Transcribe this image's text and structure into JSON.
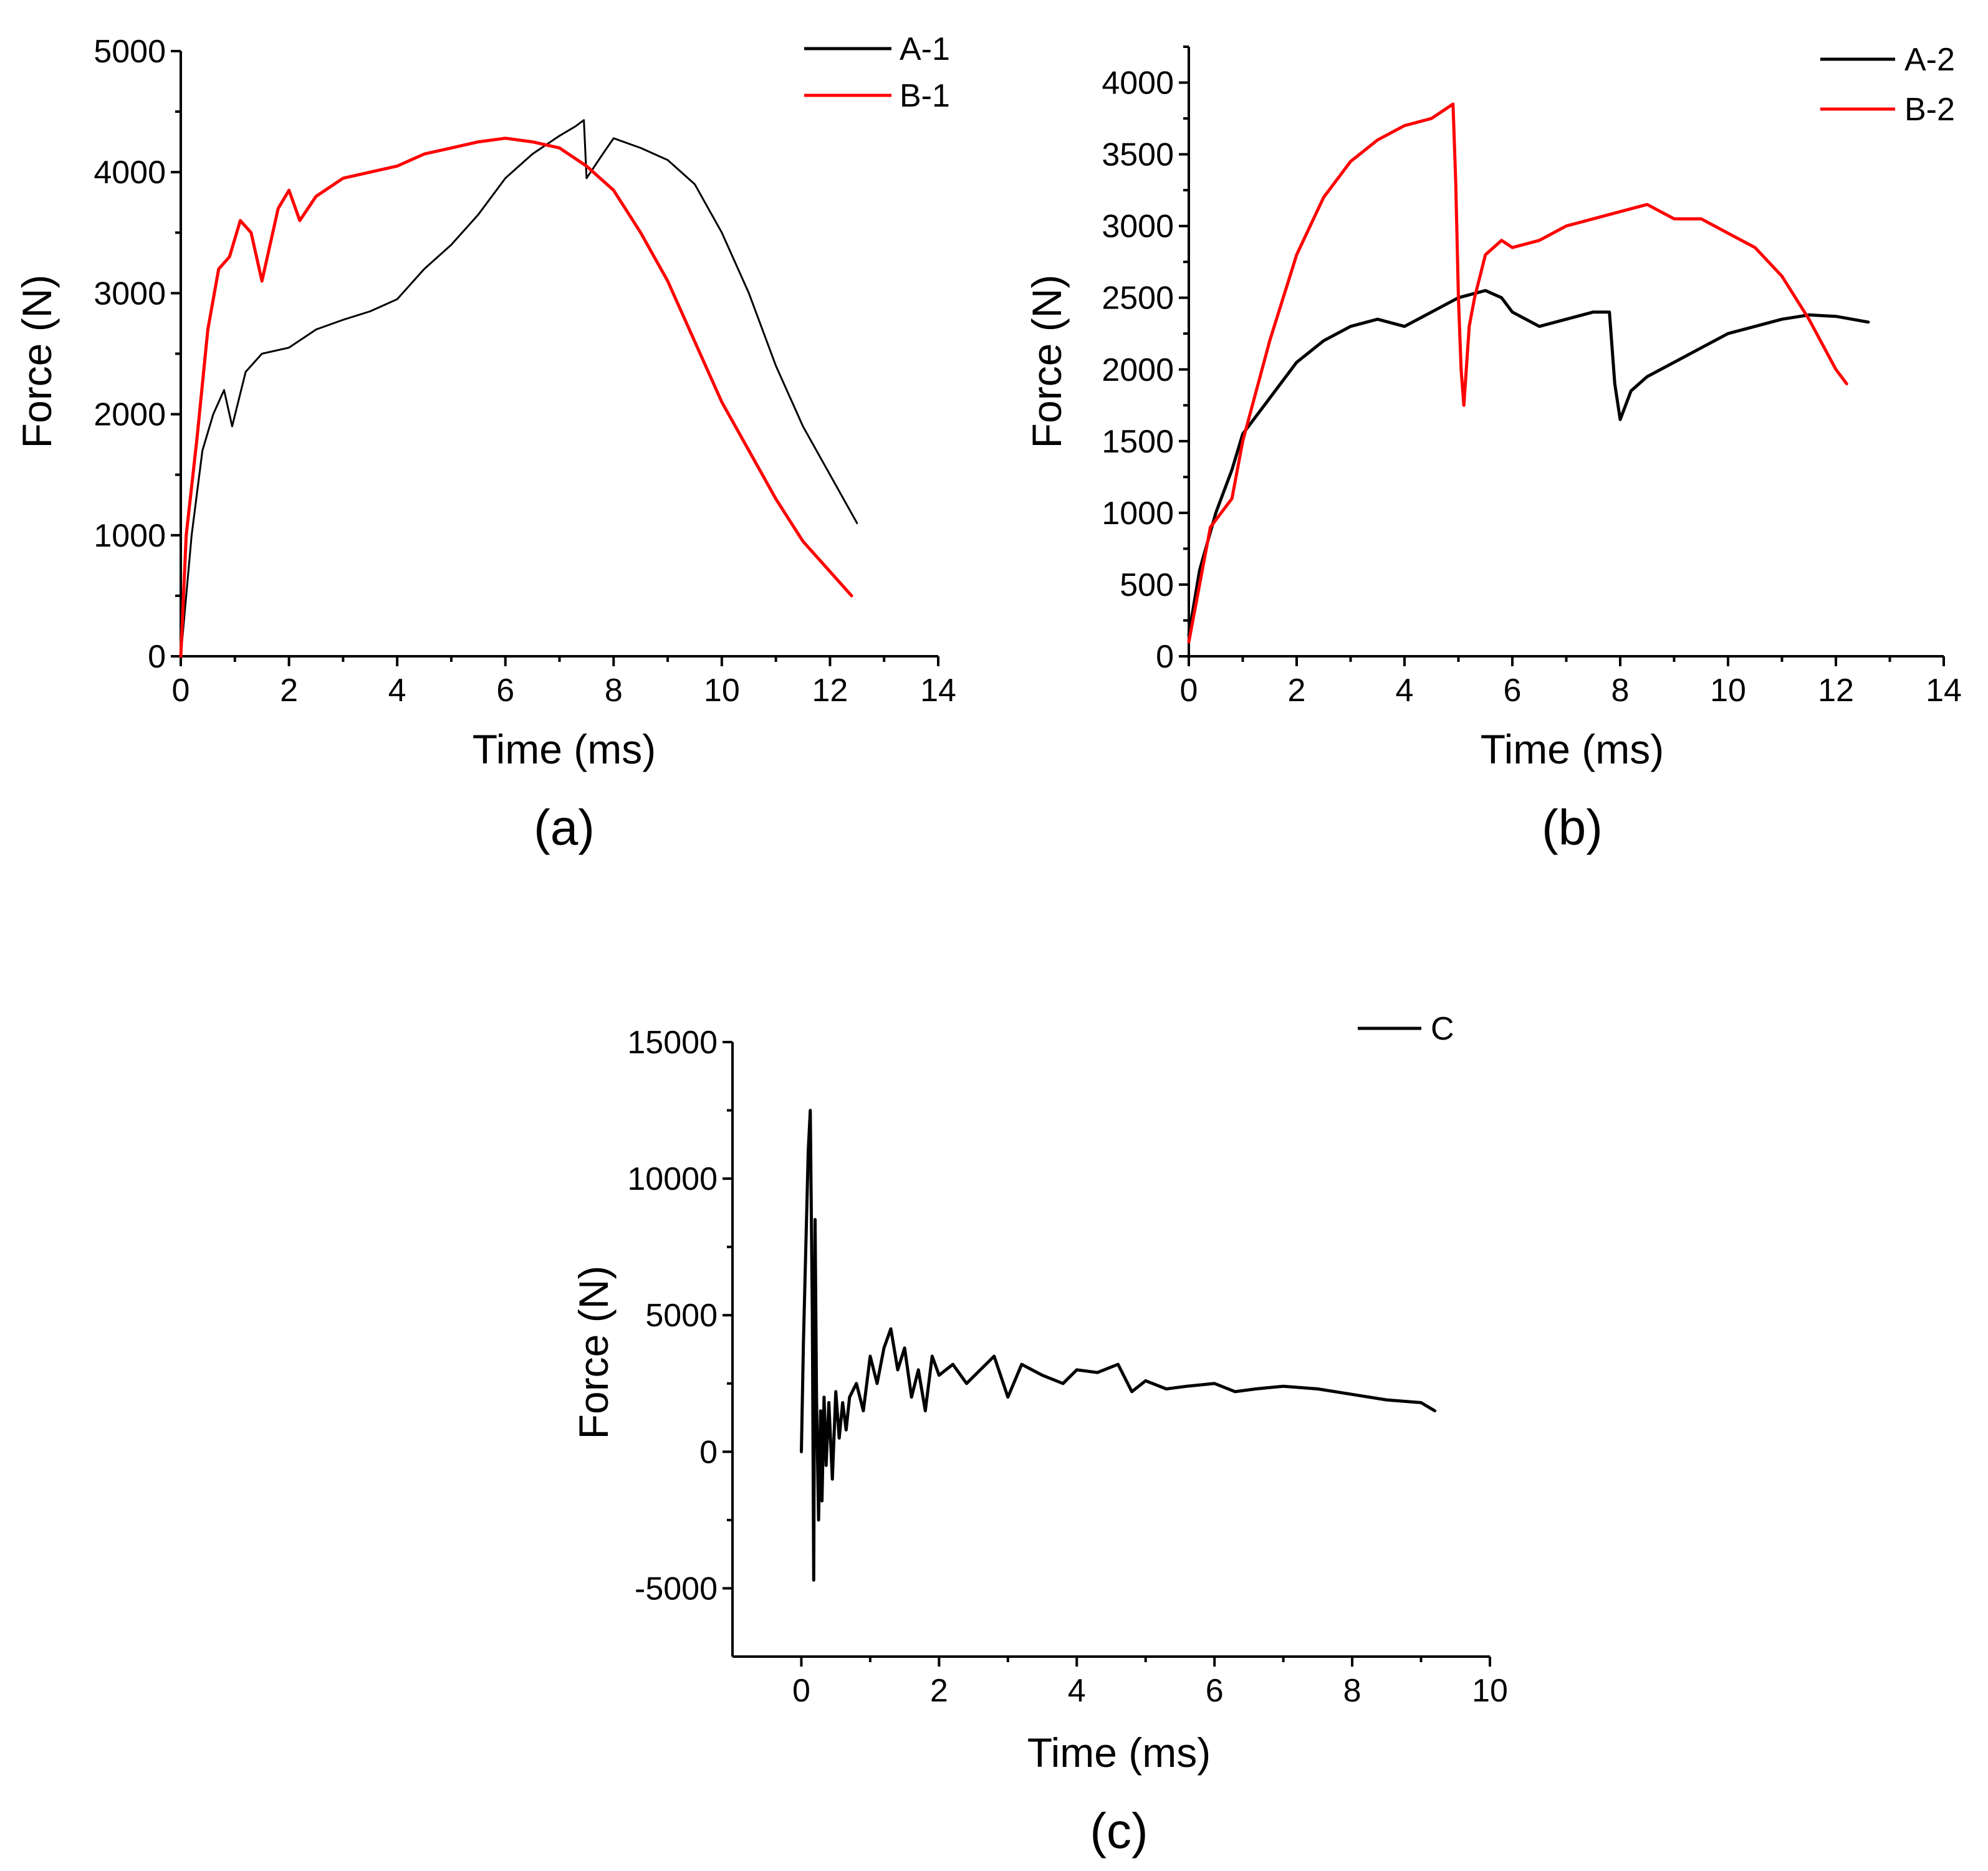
{
  "figure": {
    "panels": [
      "(a)",
      "(b)",
      "(c)"
    ]
  },
  "chart_data": [
    {
      "id": "a",
      "type": "line",
      "panel_label": "(a)",
      "xlabel": "Time (ms)",
      "ylabel": "Force (N)",
      "xlim": [
        0,
        14
      ],
      "ylim": [
        0,
        5000
      ],
      "xticks": [
        0,
        2,
        4,
        6,
        8,
        10,
        12,
        14
      ],
      "yticks": [
        0,
        1000,
        2000,
        3000,
        4000,
        5000
      ],
      "legend": "top-right",
      "series": [
        {
          "name": "A-1",
          "color": "#000000",
          "x": [
            0,
            0.2,
            0.4,
            0.6,
            0.8,
            0.95,
            1.2,
            1.5,
            2,
            2.5,
            3,
            3.5,
            4,
            4.5,
            5,
            5.5,
            6,
            6.5,
            7,
            7.3,
            7.45,
            7.5,
            7.8,
            8,
            8.5,
            9,
            9.5,
            10,
            10.5,
            11,
            11.5,
            12,
            12.5
          ],
          "y": [
            0,
            1000,
            1700,
            2000,
            2200,
            1900,
            2350,
            2500,
            2550,
            2700,
            2780,
            2850,
            2950,
            3200,
            3400,
            3650,
            3950,
            4150,
            4300,
            4380,
            4430,
            3950,
            4150,
            4280,
            4200,
            4100,
            3900,
            3500,
            3000,
            2400,
            1900,
            1500,
            1100
          ]
        },
        {
          "name": "B-1",
          "color": "#ff0000",
          "x": [
            0,
            0.1,
            0.3,
            0.5,
            0.7,
            0.9,
            1.1,
            1.3,
            1.5,
            1.8,
            2,
            2.2,
            2.5,
            3,
            3.5,
            4,
            4.5,
            5,
            5.5,
            6,
            6.5,
            7,
            7.5,
            8,
            8.5,
            9,
            9.5,
            10,
            10.5,
            11,
            11.5,
            12,
            12.4
          ],
          "y": [
            0,
            1000,
            1800,
            2700,
            3200,
            3300,
            3600,
            3500,
            3100,
            3700,
            3850,
            3600,
            3800,
            3950,
            4000,
            4050,
            4150,
            4200,
            4250,
            4280,
            4250,
            4200,
            4050,
            3850,
            3500,
            3100,
            2600,
            2100,
            1700,
            1300,
            950,
            700,
            500
          ]
        }
      ]
    },
    {
      "id": "b",
      "type": "line",
      "panel_label": "(b)",
      "xlabel": "Time (ms)",
      "ylabel": "Force (N)",
      "xlim": [
        0,
        14
      ],
      "ylim": [
        0,
        4250
      ],
      "xticks": [
        0,
        2,
        4,
        6,
        8,
        10,
        12,
        14
      ],
      "yticks": [
        0,
        500,
        1000,
        1500,
        2000,
        2500,
        3000,
        3500,
        4000
      ],
      "legend": "top-right",
      "series": [
        {
          "name": "A-2",
          "color": "#000000",
          "x": [
            0,
            0.2,
            0.5,
            0.8,
            1,
            1.5,
            2,
            2.5,
            3,
            3.5,
            4,
            4.5,
            5,
            5.5,
            5.8,
            6,
            6.5,
            7,
            7.5,
            7.8,
            7.9,
            8,
            8.2,
            8.5,
            9,
            9.5,
            10,
            10.5,
            11,
            11.5,
            12,
            12.6
          ],
          "y": [
            150,
            600,
            1000,
            1300,
            1550,
            1800,
            2050,
            2200,
            2300,
            2350,
            2300,
            2400,
            2500,
            2550,
            2500,
            2400,
            2300,
            2350,
            2400,
            2400,
            1900,
            1650,
            1850,
            1950,
            2050,
            2150,
            2250,
            2300,
            2350,
            2380,
            2370,
            2330
          ]
        },
        {
          "name": "B-2",
          "color": "#ff0000",
          "x": [
            0,
            0.2,
            0.4,
            0.6,
            0.8,
            1,
            1.5,
            2,
            2.5,
            3,
            3.5,
            4,
            4.5,
            4.9,
            4.95,
            5.0,
            5.05,
            5.1,
            5.2,
            5.3,
            5.5,
            5.8,
            6,
            6.5,
            7,
            7.5,
            8,
            8.5,
            9,
            9.5,
            10,
            10.5,
            11,
            11.5,
            12,
            12.2
          ],
          "y": [
            100,
            500,
            900,
            1000,
            1100,
            1500,
            2200,
            2800,
            3200,
            3450,
            3600,
            3700,
            3750,
            3850,
            3300,
            2500,
            2000,
            1750,
            2300,
            2500,
            2800,
            2900,
            2850,
            2900,
            3000,
            3050,
            3100,
            3150,
            3050,
            3050,
            2950,
            2850,
            2650,
            2350,
            2000,
            1900
          ]
        }
      ]
    },
    {
      "id": "c",
      "type": "line",
      "panel_label": "(c)",
      "xlabel": "Time (ms)",
      "ylabel": "Force (N)",
      "xlim": [
        -1,
        10
      ],
      "ylim": [
        -7500,
        15000
      ],
      "xticks": [
        0,
        2,
        4,
        6,
        8,
        10
      ],
      "yticks": [
        -5000,
        0,
        5000,
        10000,
        15000
      ],
      "legend": "top-right",
      "series": [
        {
          "name": "C",
          "color": "#000000",
          "x": [
            0,
            0.03,
            0.06,
            0.1,
            0.13,
            0.16,
            0.18,
            0.2,
            0.22,
            0.25,
            0.28,
            0.3,
            0.33,
            0.36,
            0.4,
            0.45,
            0.5,
            0.55,
            0.6,
            0.65,
            0.7,
            0.8,
            0.9,
            1.0,
            1.1,
            1.2,
            1.3,
            1.4,
            1.5,
            1.6,
            1.7,
            1.8,
            1.9,
            2.0,
            2.2,
            2.4,
            2.6,
            2.8,
            3.0,
            3.2,
            3.5,
            3.8,
            4.0,
            4.3,
            4.6,
            4.8,
            5.0,
            5.3,
            5.6,
            6.0,
            6.3,
            6.6,
            7.0,
            7.5,
            8.0,
            8.5,
            9.0,
            9.2
          ],
          "y": [
            0,
            4000,
            7000,
            11000,
            12500,
            5000,
            -4700,
            8500,
            2000,
            -2500,
            1500,
            -1800,
            2000,
            -500,
            1800,
            -1000,
            2200,
            500,
            1800,
            800,
            2000,
            2500,
            1500,
            3500,
            2500,
            3800,
            4500,
            3000,
            3800,
            2000,
            3000,
            1500,
            3500,
            2800,
            3200,
            2500,
            3000,
            3500,
            2000,
            3200,
            2800,
            2500,
            3000,
            2900,
            3200,
            2200,
            2600,
            2300,
            2400,
            2500,
            2200,
            2300,
            2400,
            2300,
            2100,
            1900,
            1800,
            1500
          ]
        }
      ]
    }
  ]
}
